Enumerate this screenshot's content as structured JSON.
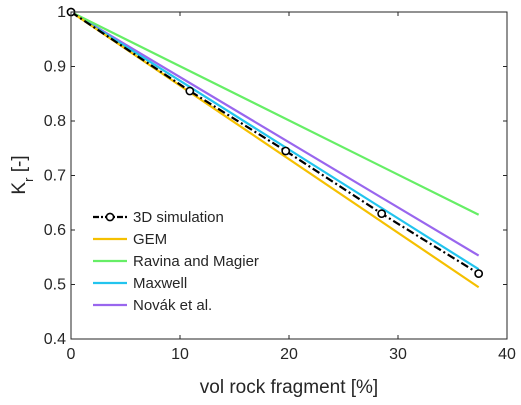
{
  "chart_data": {
    "type": "line",
    "title": "",
    "xlabel": "vol rock fragment [%]",
    "ylabel_main": "K",
    "ylabel_sub": "r",
    "ylabel_unit": " [-]",
    "xlim": [
      0,
      40
    ],
    "ylim": [
      0.4,
      1.0
    ],
    "xticks": [
      "0",
      "10",
      "20",
      "30",
      "40"
    ],
    "yticks": [
      "0.4",
      "0.5",
      "0.6",
      "0.7",
      "0.8",
      "0.9",
      "1"
    ],
    "grid": false,
    "legend_position": "bottom-left",
    "series": [
      {
        "name": "3D simulation",
        "color": "#000000",
        "style": "dash-dot-circle",
        "x": [
          0,
          10.9,
          19.7,
          28.5,
          37.4
        ],
        "y": [
          1.0,
          0.855,
          0.745,
          0.63,
          0.52
        ]
      },
      {
        "name": "GEM",
        "color": "#f5c000",
        "style": "solid",
        "x": [
          0,
          37.4
        ],
        "y": [
          1.0,
          0.495
        ]
      },
      {
        "name": "Ravina and Magier",
        "color": "#66ee66",
        "style": "solid",
        "x": [
          0,
          37.4
        ],
        "y": [
          1.0,
          0.628
        ]
      },
      {
        "name": "Maxwell",
        "color": "#22c4ee",
        "style": "solid",
        "x": [
          0,
          37.4
        ],
        "y": [
          1.0,
          0.528
        ]
      },
      {
        "name": "Novák et al.",
        "color": "#9966ee",
        "style": "solid",
        "x": [
          0,
          37.4
        ],
        "y": [
          1.0,
          0.553
        ]
      }
    ]
  }
}
